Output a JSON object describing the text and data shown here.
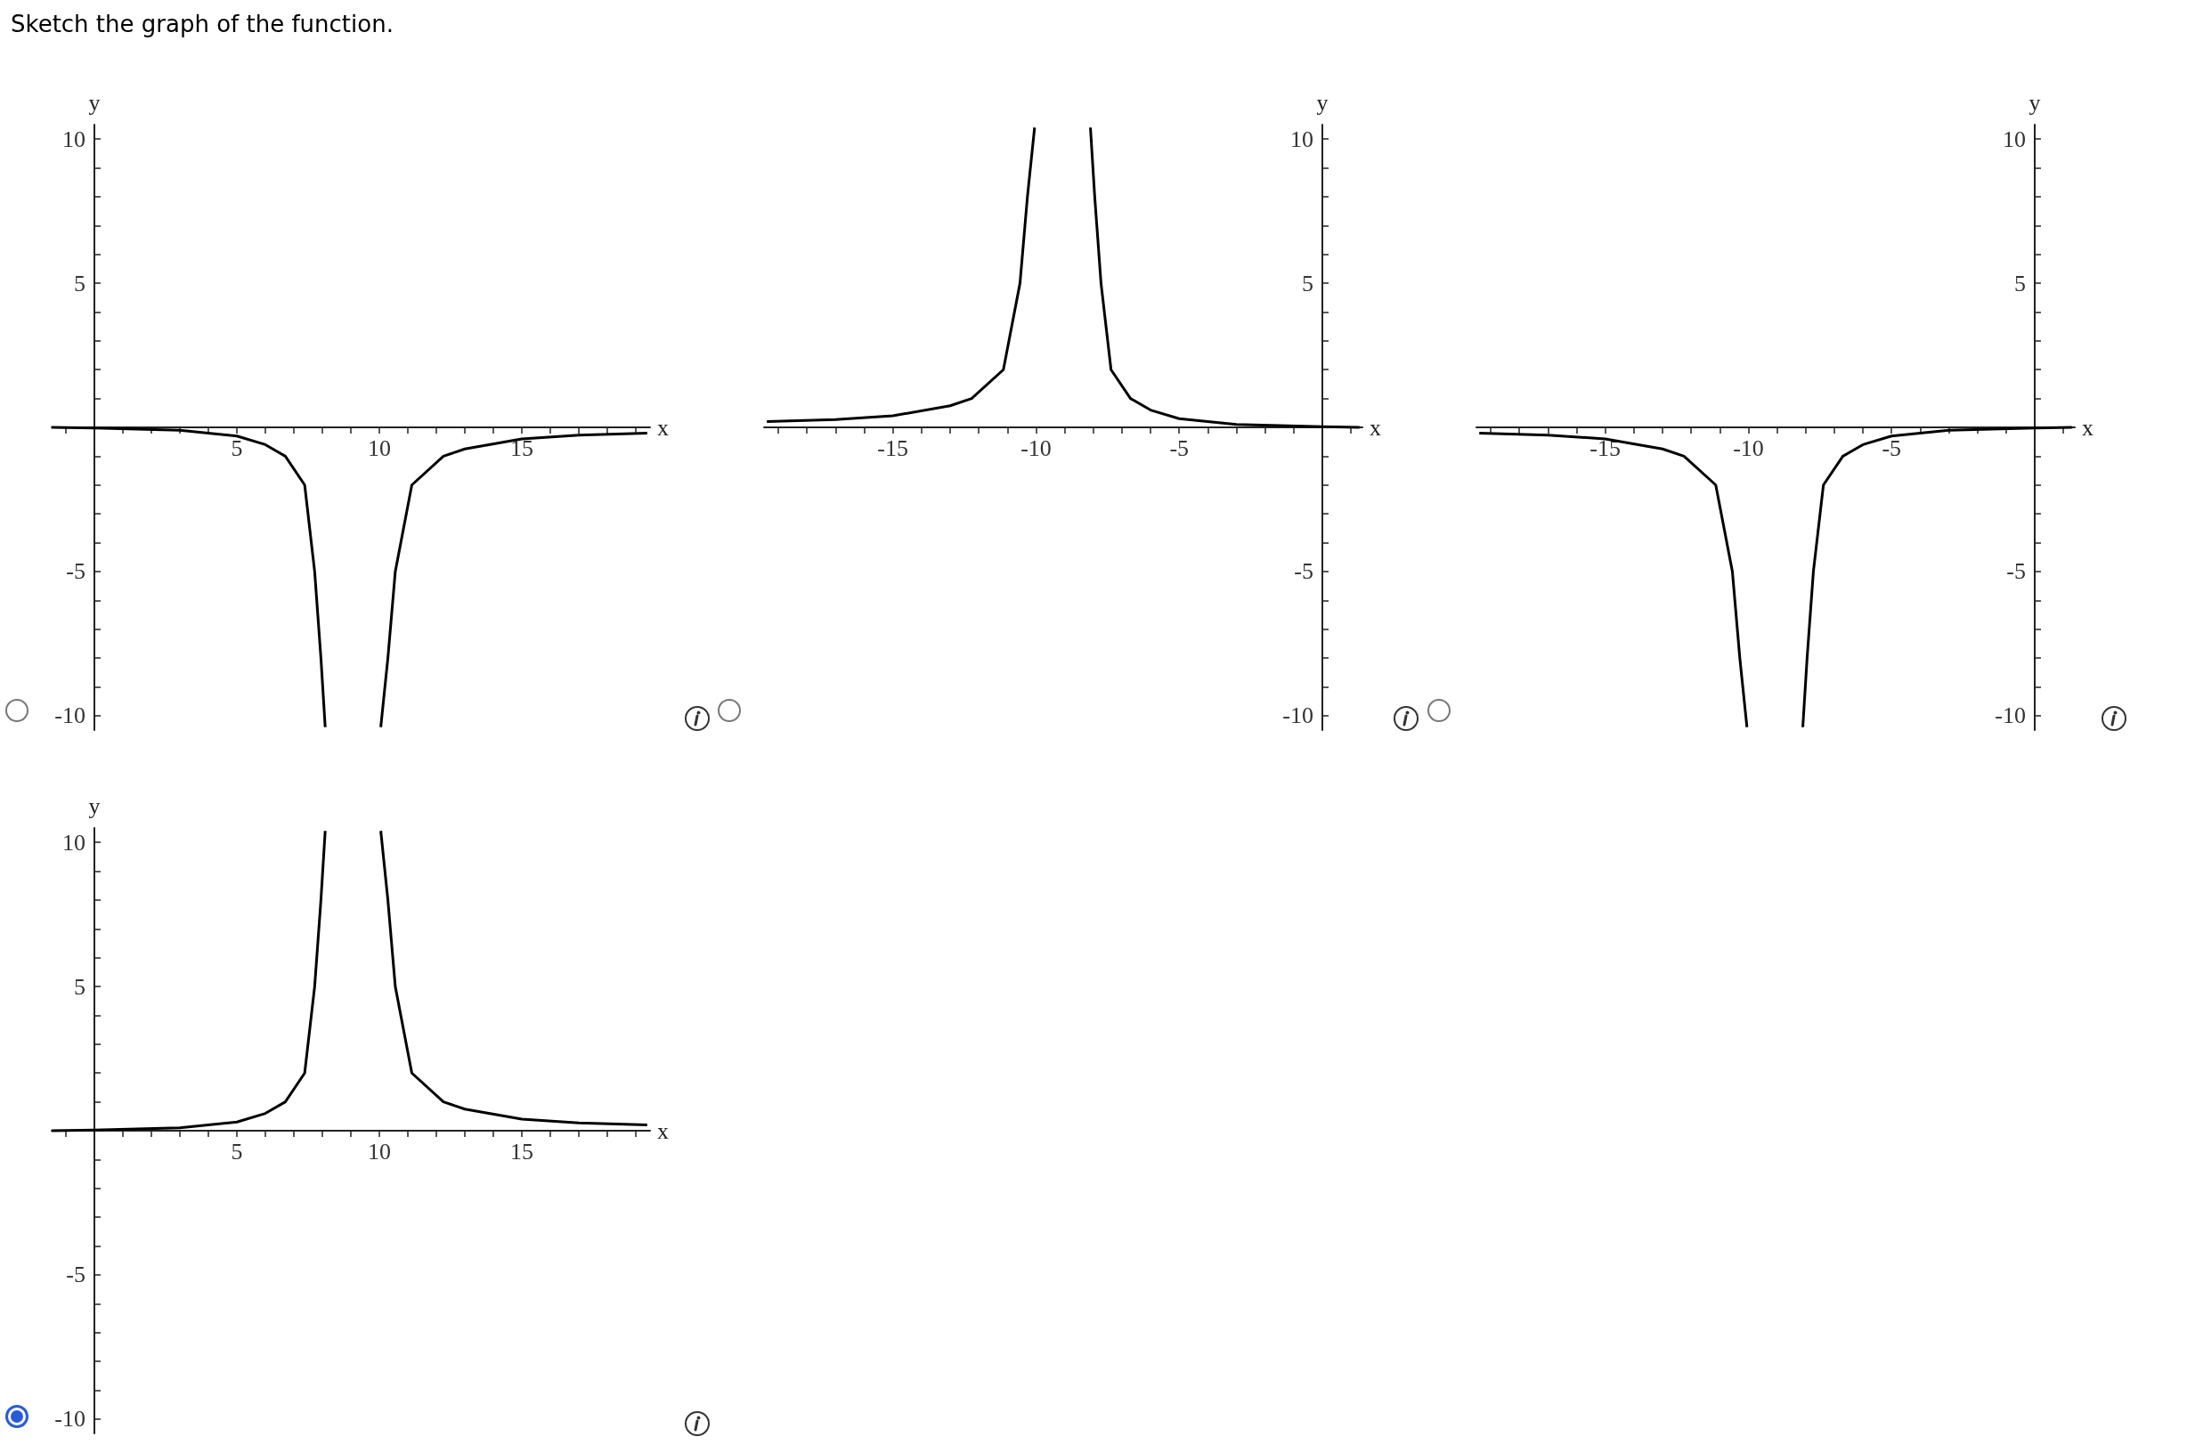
{
  "chart_data": [
    {
      "type": "line",
      "title": "Sketch the graph of the function.",
      "xlabel": "x",
      "ylabel": "y",
      "xlim": [
        -1.5,
        19.5
      ],
      "ylim": [
        -10.5,
        10.5
      ],
      "xticks": [
        {
          "value": -1,
          "label": null
        },
        {
          "value": 1,
          "label": null
        },
        {
          "value": 2,
          "label": null
        },
        {
          "value": 3,
          "label": null
        },
        {
          "value": 4,
          "label": null
        },
        5,
        {
          "value": 6,
          "label": null
        },
        {
          "value": 7,
          "label": null
        },
        {
          "value": 8,
          "label": null
        },
        {
          "value": 9,
          "label": null
        },
        10,
        {
          "value": 11,
          "label": null
        },
        {
          "value": 12,
          "label": null
        },
        {
          "value": 13,
          "label": null
        },
        {
          "value": 14,
          "label": null
        },
        15,
        {
          "value": 16,
          "label": null
        },
        {
          "value": 17,
          "label": null
        },
        {
          "value": 18,
          "label": null
        },
        {
          "value": 19,
          "label": null
        }
      ],
      "yticks": [
        -10,
        {
          "value": -9,
          "label": null
        },
        {
          "value": -8,
          "label": null
        },
        {
          "value": -7,
          "label": null
        },
        {
          "value": -6,
          "label": null
        },
        -5,
        {
          "value": -4,
          "label": null
        },
        {
          "value": -3,
          "label": null
        },
        {
          "value": -2,
          "label": null
        },
        {
          "value": -1,
          "label": null
        },
        {
          "value": 1,
          "label": null
        },
        {
          "value": 2,
          "label": null
        },
        {
          "value": 3,
          "label": null
        },
        {
          "value": 4,
          "label": null
        },
        5,
        {
          "value": 6,
          "label": null
        },
        {
          "value": 7,
          "label": null
        },
        {
          "value": 8,
          "label": null
        },
        {
          "value": 9,
          "label": null
        },
        10
      ],
      "series": [
        {
          "color": "#000000",
          "x": [
            -1.5,
            0,
            3,
            5,
            6,
            6.7,
            7.38,
            7.73,
            7.95,
            8.1,
            9.1,
            10.05,
            10.3,
            10.56,
            11.14,
            12.25,
            13,
            15,
            17,
            19.4
          ],
          "values": [
            0,
            -0.02,
            -0.1,
            -0.3,
            -0.6,
            -1,
            -2,
            -5,
            -8,
            -10.4,
            null,
            -10.4,
            -8,
            -5,
            -2,
            -1,
            -0.75,
            -0.4,
            -0.27,
            -0.2
          ]
        }
      ]
    },
    {
      "type": "line",
      "xlabel": "x",
      "ylabel": "y",
      "xlim": [
        -19.5,
        1.4
      ],
      "ylim": [
        -10.5,
        10.5
      ],
      "xticks": [
        {
          "value": -19,
          "label": null
        },
        {
          "value": -18,
          "label": null
        },
        {
          "value": -17,
          "label": null
        },
        {
          "value": -16,
          "label": null
        },
        -15,
        {
          "value": -14,
          "label": null
        },
        {
          "value": -13,
          "label": null
        },
        {
          "value": -12,
          "label": null
        },
        {
          "value": -11,
          "label": null
        },
        -10,
        {
          "value": -9,
          "label": null
        },
        {
          "value": -8,
          "label": null
        },
        {
          "value": -7,
          "label": null
        },
        {
          "value": -6,
          "label": null
        },
        -5,
        {
          "value": -4,
          "label": null
        },
        {
          "value": -3,
          "label": null
        },
        {
          "value": -2,
          "label": null
        },
        {
          "value": -1,
          "label": null
        },
        {
          "value": 1,
          "label": null
        }
      ],
      "yticks": [
        -10,
        {
          "value": -9,
          "label": null
        },
        {
          "value": -8,
          "label": null
        },
        {
          "value": -7,
          "label": null
        },
        {
          "value": -6,
          "label": null
        },
        -5,
        {
          "value": -4,
          "label": null
        },
        {
          "value": -3,
          "label": null
        },
        {
          "value": -2,
          "label": null
        },
        {
          "value": -1,
          "label": null
        },
        {
          "value": 1,
          "label": null
        },
        {
          "value": 2,
          "label": null
        },
        {
          "value": 3,
          "label": null
        },
        {
          "value": 4,
          "label": null
        },
        5,
        {
          "value": 6,
          "label": null
        },
        {
          "value": 7,
          "label": null
        },
        {
          "value": 8,
          "label": null
        },
        {
          "value": 9,
          "label": null
        },
        10
      ],
      "series": [
        {
          "color": "#000000",
          "x": [
            -19.4,
            -17,
            -15,
            -13,
            -12.25,
            -11.14,
            -10.56,
            -10.3,
            -10.05,
            -9.1,
            -8.1,
            -7.95,
            -7.73,
            -7.38,
            -6.7,
            -6,
            -5,
            -3,
            0,
            1.3
          ],
          "values": [
            0.2,
            0.27,
            0.4,
            0.75,
            1,
            2,
            5,
            8,
            10.4,
            null,
            10.4,
            8,
            5,
            2,
            1,
            0.6,
            0.3,
            0.1,
            0.02,
            0
          ]
        }
      ]
    },
    {
      "type": "line",
      "xlabel": "x",
      "ylabel": "y",
      "xlim": [
        -19.5,
        1.4
      ],
      "ylim": [
        -10.5,
        10.5
      ],
      "xticks": [
        {
          "value": -19,
          "label": null
        },
        {
          "value": -18,
          "label": null
        },
        {
          "value": -17,
          "label": null
        },
        {
          "value": -16,
          "label": null
        },
        -15,
        {
          "value": -14,
          "label": null
        },
        {
          "value": -13,
          "label": null
        },
        {
          "value": -12,
          "label": null
        },
        {
          "value": -11,
          "label": null
        },
        -10,
        {
          "value": -9,
          "label": null
        },
        {
          "value": -8,
          "label": null
        },
        {
          "value": -7,
          "label": null
        },
        {
          "value": -6,
          "label": null
        },
        -5,
        {
          "value": -4,
          "label": null
        },
        {
          "value": -3,
          "label": null
        },
        {
          "value": -2,
          "label": null
        },
        {
          "value": -1,
          "label": null
        },
        {
          "value": 1,
          "label": null
        }
      ],
      "yticks": [
        -10,
        {
          "value": -9,
          "label": null
        },
        {
          "value": -8,
          "label": null
        },
        {
          "value": -7,
          "label": null
        },
        {
          "value": -6,
          "label": null
        },
        -5,
        {
          "value": -4,
          "label": null
        },
        {
          "value": -3,
          "label": null
        },
        {
          "value": -2,
          "label": null
        },
        {
          "value": -1,
          "label": null
        },
        {
          "value": 1,
          "label": null
        },
        {
          "value": 2,
          "label": null
        },
        {
          "value": 3,
          "label": null
        },
        {
          "value": 4,
          "label": null
        },
        5,
        {
          "value": 6,
          "label": null
        },
        {
          "value": 7,
          "label": null
        },
        {
          "value": 8,
          "label": null
        },
        {
          "value": 9,
          "label": null
        },
        10
      ],
      "series": [
        {
          "color": "#000000",
          "x": [
            -19.4,
            -17,
            -15,
            -13,
            -12.25,
            -11.14,
            -10.56,
            -10.3,
            -10.05,
            -9.1,
            -8.1,
            -7.95,
            -7.73,
            -7.38,
            -6.7,
            -6,
            -5,
            -3,
            0,
            1.3
          ],
          "values": [
            -0.2,
            -0.27,
            -0.4,
            -0.75,
            -1,
            -2,
            -5,
            -8,
            -10.4,
            null,
            -10.4,
            -8,
            -5,
            -2,
            -1,
            -0.6,
            -0.3,
            -0.1,
            -0.02,
            0
          ]
        }
      ]
    },
    {
      "type": "line",
      "xlabel": "x",
      "ylabel": "y",
      "xlim": [
        -1.5,
        19.5
      ],
      "ylim": [
        -10.5,
        10.5
      ],
      "xticks": [
        {
          "value": -1,
          "label": null
        },
        {
          "value": 1,
          "label": null
        },
        {
          "value": 2,
          "label": null
        },
        {
          "value": 3,
          "label": null
        },
        {
          "value": 4,
          "label": null
        },
        5,
        {
          "value": 6,
          "label": null
        },
        {
          "value": 7,
          "label": null
        },
        {
          "value": 8,
          "label": null
        },
        {
          "value": 9,
          "label": null
        },
        10,
        {
          "value": 11,
          "label": null
        },
        {
          "value": 12,
          "label": null
        },
        {
          "value": 13,
          "label": null
        },
        {
          "value": 14,
          "label": null
        },
        15,
        {
          "value": 16,
          "label": null
        },
        {
          "value": 17,
          "label": null
        },
        {
          "value": 18,
          "label": null
        },
        {
          "value": 19,
          "label": null
        }
      ],
      "yticks": [
        -10,
        {
          "value": -9,
          "label": null
        },
        {
          "value": -8,
          "label": null
        },
        {
          "value": -7,
          "label": null
        },
        {
          "value": -6,
          "label": null
        },
        -5,
        {
          "value": -4,
          "label": null
        },
        {
          "value": -3,
          "label": null
        },
        {
          "value": -2,
          "label": null
        },
        {
          "value": -1,
          "label": null
        },
        {
          "value": 1,
          "label": null
        },
        {
          "value": 2,
          "label": null
        },
        {
          "value": 3,
          "label": null
        },
        {
          "value": 4,
          "label": null
        },
        5,
        {
          "value": 6,
          "label": null
        },
        {
          "value": 7,
          "label": null
        },
        {
          "value": 8,
          "label": null
        },
        {
          "value": 9,
          "label": null
        },
        10
      ],
      "series": [
        {
          "color": "#000000",
          "x": [
            -1.5,
            0,
            3,
            5,
            6,
            6.7,
            7.38,
            7.73,
            7.95,
            8.1,
            9.1,
            10.05,
            10.3,
            10.56,
            11.14,
            12.25,
            13,
            15,
            17,
            19.4
          ],
          "values": [
            0,
            0.02,
            0.1,
            0.3,
            0.6,
            1,
            2,
            5,
            8,
            10.4,
            null,
            10.4,
            8,
            5,
            2,
            1,
            0.75,
            0.4,
            0.27,
            0.2
          ]
        }
      ]
    }
  ]
}
